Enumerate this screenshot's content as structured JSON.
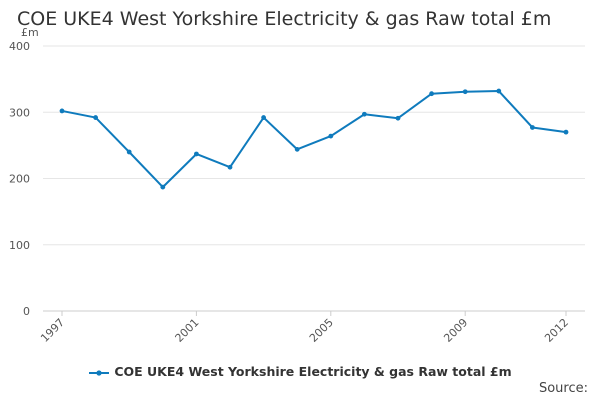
{
  "colors": {
    "series": "#0f7bbd",
    "grid": "#e6e6e6",
    "axis_text": "#555555"
  },
  "chart_data": {
    "type": "line",
    "title": "COE UKE4 West Yorkshire Electricity & gas Raw total £m",
    "ylabel": "£m",
    "xlabel": "",
    "ylim": [
      0,
      400
    ],
    "yticks": [
      0,
      100,
      200,
      300,
      400
    ],
    "xticks": [
      1997,
      2001,
      2005,
      2009,
      2012
    ],
    "grid": true,
    "legend_position": "bottom",
    "series": [
      {
        "name": "COE UKE4 West Yorkshire Electricity & gas Raw total £m",
        "x": [
          1997,
          1998,
          1999,
          2000,
          2001,
          2002,
          2003,
          2004,
          2005,
          2006,
          2007,
          2008,
          2009,
          2010,
          2011,
          2012
        ],
        "y": [
          302,
          292,
          240,
          187,
          237,
          217,
          292,
          244,
          264,
          297,
          291,
          328,
          331,
          332,
          277,
          270
        ]
      }
    ]
  },
  "source_label": "Source:"
}
